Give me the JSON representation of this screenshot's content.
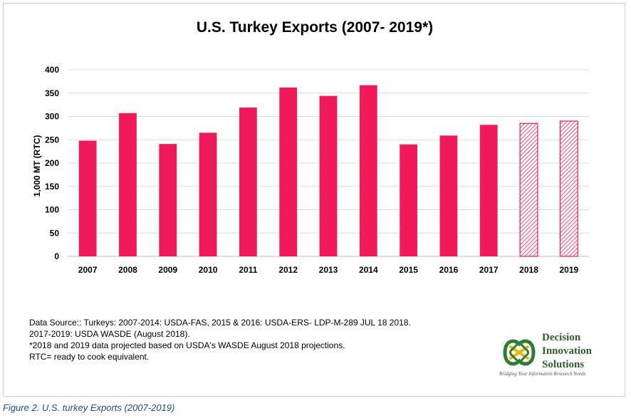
{
  "chart_data": {
    "type": "bar",
    "title": "U.S. Turkey Exports (2007- 2019*)",
    "xlabel": "",
    "ylabel": "1,000 MT (RTC)",
    "ylim": [
      0,
      400
    ],
    "yticks": [
      0,
      50,
      100,
      150,
      200,
      250,
      300,
      350,
      400
    ],
    "grid": true,
    "categories": [
      "2007",
      "2008",
      "2009",
      "2010",
      "2011",
      "2012",
      "2013",
      "2014",
      "2015",
      "2016",
      "2017",
      "2018",
      "2019"
    ],
    "values": [
      248,
      307,
      241,
      265,
      319,
      362,
      344,
      367,
      240,
      259,
      282,
      285,
      290
    ],
    "projected": [
      false,
      false,
      false,
      false,
      false,
      false,
      false,
      false,
      false,
      false,
      false,
      true,
      true
    ],
    "colors": {
      "bar": "#f0195a",
      "grid": "#d9d9d9",
      "axis": "#bfbfbf"
    }
  },
  "notes": [
    "Data Source:: Turkeys: 2007-2014: USDA-FAS, 2015 & 2016: USDA-ERS- LDP-M-289 JUL 18 2018.",
    "2017-2019: USDA WASDE (August 2018).",
    "*2018 and 2019 data projected based on USDA's WASDE August 2018 projections.",
    "RTC= ready to cook equivalent."
  ],
  "logo": {
    "line1": "Decision",
    "line2": "Innovation",
    "line3": "Solutions",
    "tagline": "Bridging Your Information Research Needs"
  },
  "caption": "Figure 2. U.S. turkey Exports (2007-2019)"
}
